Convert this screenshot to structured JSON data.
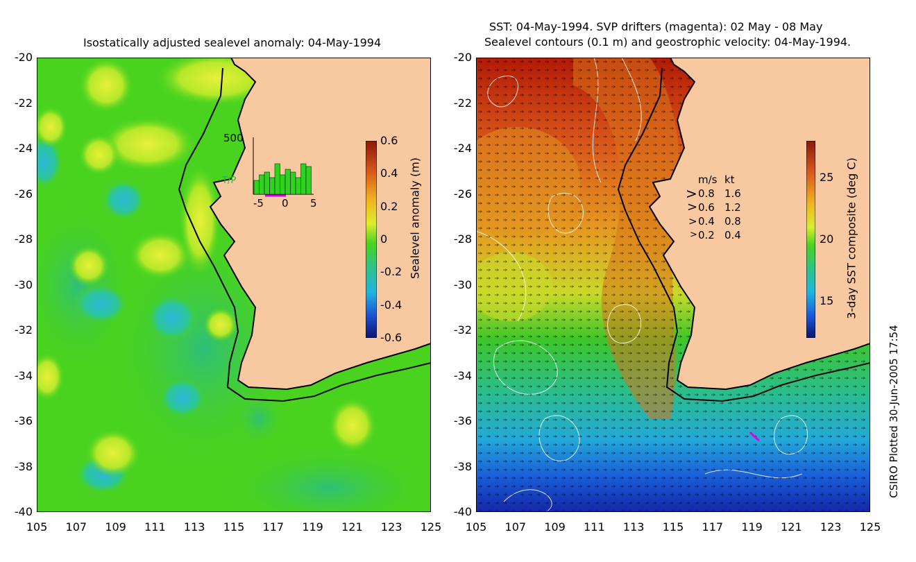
{
  "left_map": {
    "title": "Isostatically adjusted sealevel anomaly: 04-May-1994",
    "y_ticks": [
      "-20",
      "-22",
      "-24",
      "-26",
      "-28",
      "-30",
      "-32",
      "-34",
      "-36",
      "-38",
      "-40"
    ],
    "x_ticks": [
      "105",
      "107",
      "109",
      "111",
      "113",
      "115",
      "117",
      "119",
      "121",
      "123",
      "125"
    ],
    "colorbar": {
      "label": "Sealevel anomaly (m)",
      "ticks": [
        "0.6",
        "0.4",
        "0.2",
        "0",
        "-0.2",
        "-0.4",
        "-0.6"
      ]
    },
    "inset": {
      "y_max_label": "500",
      "series_label": "T/P",
      "x_ticks": [
        "-5",
        "0",
        "5"
      ],
      "bars": [
        0.25,
        0.35,
        0.4,
        0.3,
        0.55,
        0.35,
        0.45,
        0.4,
        0.3,
        0.55,
        0.5
      ]
    }
  },
  "right_map": {
    "title_line1": "SST: 04-May-1994. SVP drifters (magenta): 02 May - 08 May",
    "title_line2": "Sealevel contours (0.1 m) and geostrophic velocity: 04-May-1994.",
    "y_ticks": [
      "-20",
      "-22",
      "-24",
      "-26",
      "-28",
      "-30",
      "-32",
      "-34",
      "-36",
      "-38",
      "-40"
    ],
    "x_ticks": [
      "105",
      "107",
      "109",
      "111",
      "113",
      "115",
      "117",
      "119",
      "121",
      "123",
      "125"
    ],
    "colorbar": {
      "label": "3-day SST composite (deg C)",
      "ticks": [
        "25",
        "20",
        "15"
      ]
    },
    "velocity_legend": {
      "header_ms": "m/s",
      "header_kt": "kt",
      "rows": [
        {
          "ms": "0.8",
          "kt": "1.6"
        },
        {
          "ms": "0.6",
          "kt": "1.2"
        },
        {
          "ms": "0.4",
          "kt": "0.8"
        },
        {
          "ms": "0.2",
          "kt": "0.4"
        }
      ]
    }
  },
  "credit": "CSIRO Plotted 30-Jun-2005 17:54",
  "colors": {
    "land": "#f8c8a0",
    "ocean_green": "#49d31f",
    "coast": "#000000"
  }
}
